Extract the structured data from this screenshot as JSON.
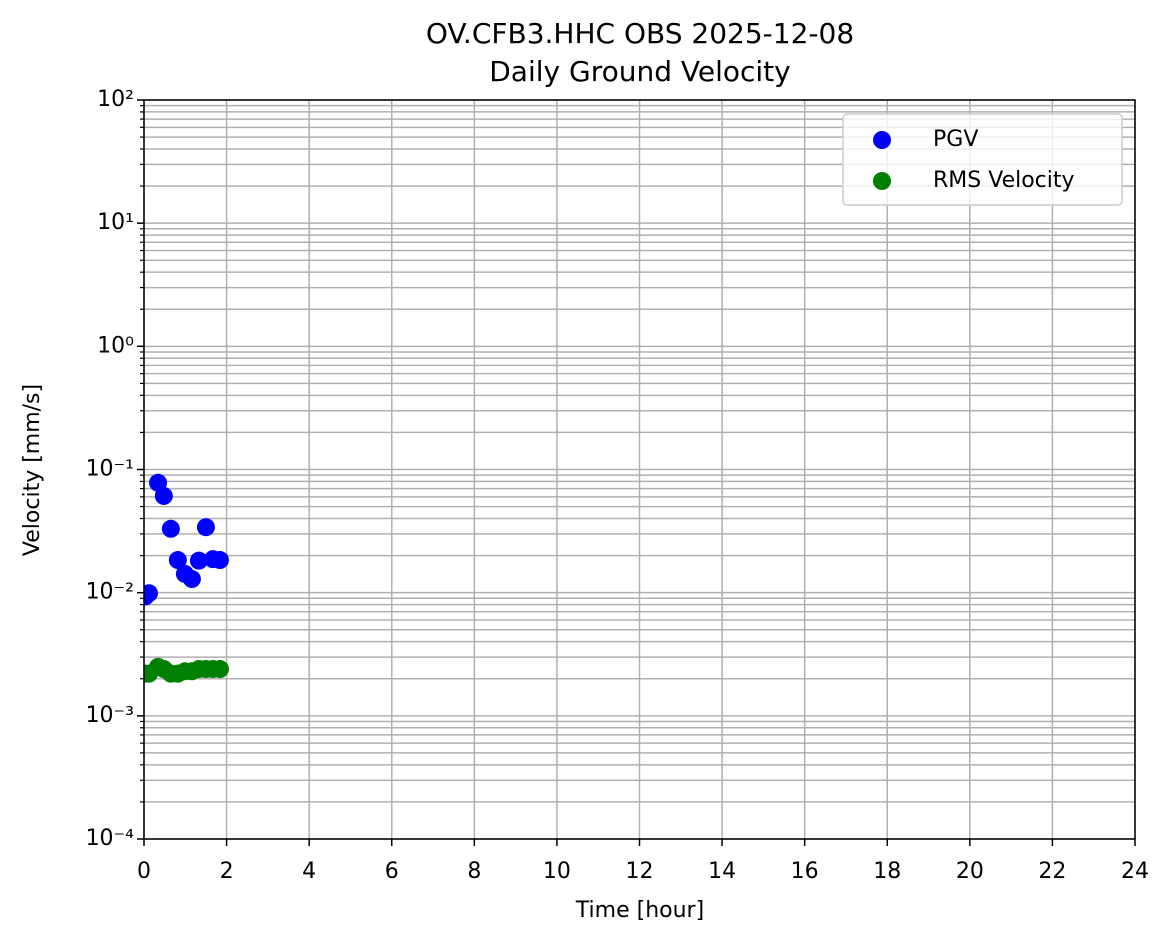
{
  "chart_data": {
    "type": "scatter",
    "title": "OV.CFB3.HHC OBS 2025-12-08",
    "subtitle": "Daily Ground Velocity",
    "x_label": "Time [hour]",
    "y_label": "Velocity [mm/s]",
    "y_log": true,
    "grid": true,
    "legend": "upper right",
    "xlim": [
      0,
      24
    ],
    "xticks": [
      0,
      2,
      4,
      6,
      8,
      10,
      12,
      14,
      16,
      18,
      20,
      22,
      24
    ],
    "ylim": [
      0.0001,
      100
    ],
    "yticks": [
      {
        "value": 0.0001,
        "label": "10⁻⁴"
      },
      {
        "value": 0.001,
        "label": "10⁻³"
      },
      {
        "value": 0.01,
        "label": "10⁻²"
      },
      {
        "value": 0.1,
        "label": "10⁻¹"
      },
      {
        "value": 1,
        "label": "10⁰"
      },
      {
        "value": 10,
        "label": "10¹"
      },
      {
        "value": 100,
        "label": "10²"
      }
    ],
    "series": [
      {
        "name": "PGV",
        "color": "#0000ff",
        "x": [
          0.03,
          0.12,
          0.34,
          0.48,
          0.65,
          0.82,
          0.99,
          1.16,
          1.33,
          1.5,
          1.67,
          1.84
        ],
        "values": [
          0.0093,
          0.0099,
          0.078,
          0.061,
          0.033,
          0.0184,
          0.0142,
          0.0129,
          0.0182,
          0.034,
          0.0187,
          0.0184
        ]
      },
      {
        "name": "RMS Velocity",
        "color": "#008000",
        "x": [
          0.03,
          0.12,
          0.34,
          0.48,
          0.65,
          0.82,
          0.99,
          1.16,
          1.33,
          1.5,
          1.67,
          1.84
        ],
        "values": [
          0.0022,
          0.0022,
          0.0025,
          0.0024,
          0.0022,
          0.0022,
          0.0023,
          0.0023,
          0.0024,
          0.0024,
          0.0024,
          0.0024
        ]
      }
    ]
  }
}
